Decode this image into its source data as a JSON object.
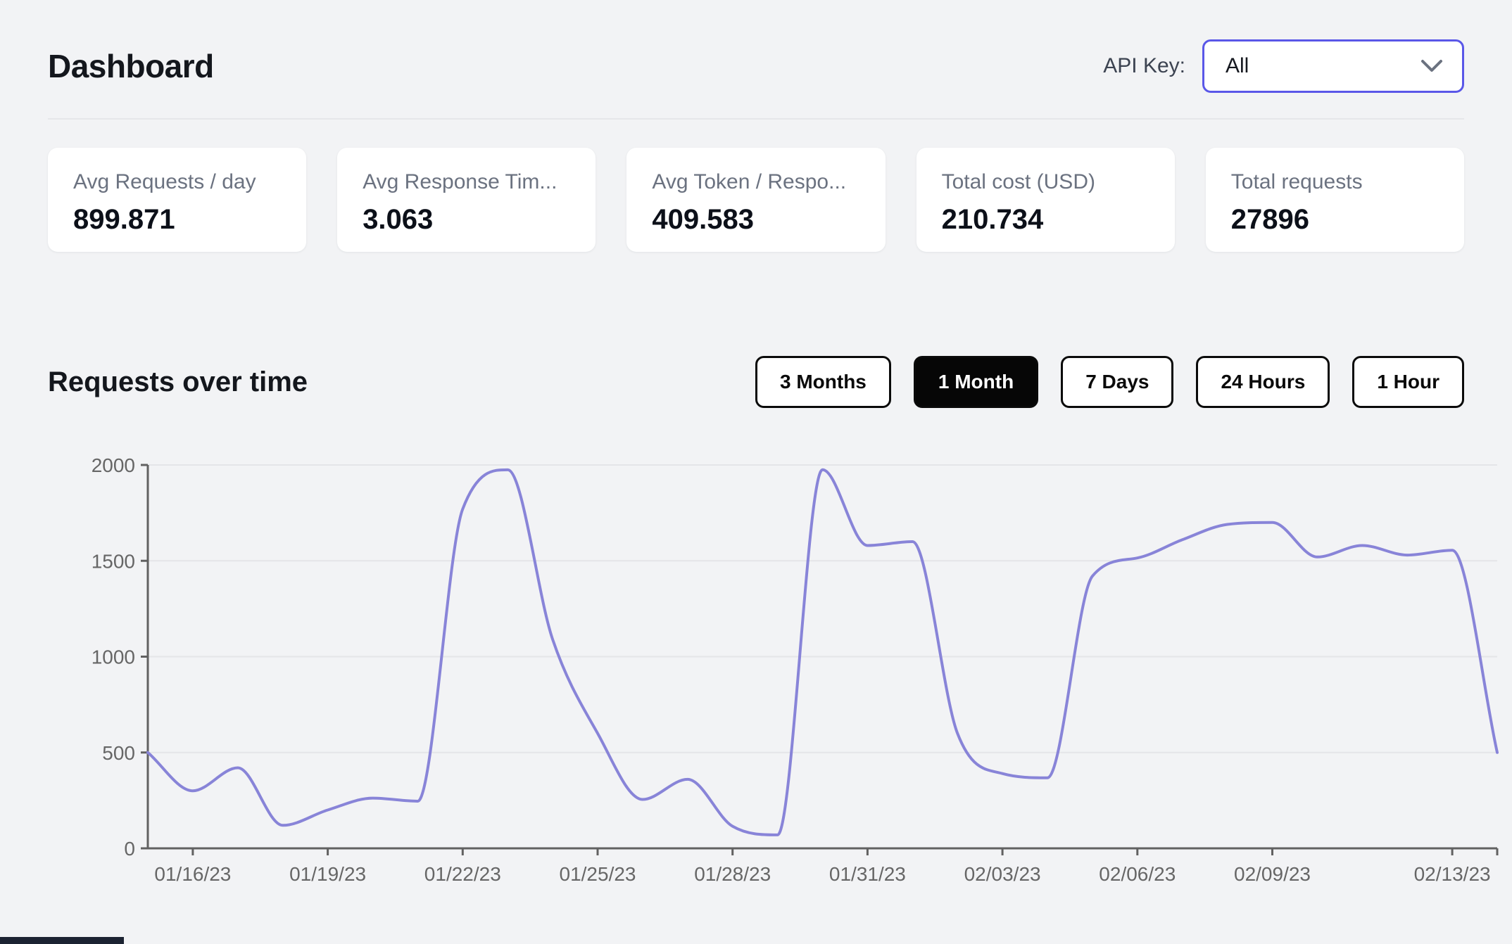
{
  "header": {
    "title": "Dashboard",
    "api_key_label": "API Key:",
    "api_key_value": "All"
  },
  "stats": {
    "cards": [
      {
        "label": "Avg Requests / day",
        "value": "899.871"
      },
      {
        "label": "Avg Response Tim...",
        "value": "3.063"
      },
      {
        "label": "Avg Token / Respo...",
        "value": "409.583"
      },
      {
        "label": "Total cost (USD)",
        "value": "210.734"
      },
      {
        "label": "Total requests",
        "value": "27896"
      }
    ]
  },
  "section": {
    "title": "Requests over time"
  },
  "time_ranges": {
    "options": [
      "3 Months",
      "1 Month",
      "7 Days",
      "24 Hours",
      "1 Hour"
    ],
    "active": "1 Month"
  },
  "chart_data": {
    "type": "line",
    "title": "Requests over time",
    "x": [
      "01/15/23",
      "01/16/23",
      "01/17/23",
      "01/18/23",
      "01/19/23",
      "01/20/23",
      "01/21/23",
      "01/22/23",
      "01/23/23",
      "01/24/23",
      "01/25/23",
      "01/26/23",
      "01/27/23",
      "01/28/23",
      "01/29/23",
      "01/30/23",
      "01/31/23",
      "02/01/23",
      "02/02/23",
      "02/03/23",
      "02/04/23",
      "02/05/23",
      "02/06/23",
      "02/07/23",
      "02/08/23",
      "02/09/23",
      "02/10/23",
      "02/11/23",
      "02/12/23",
      "02/13/23",
      "02/14/23"
    ],
    "series": [
      {
        "name": "requests",
        "values": [
          500,
          300,
          420,
          120,
          200,
          262,
          246,
          1770,
          1975,
          1090,
          600,
          255,
          360,
          115,
          70,
          1975,
          1580,
          1600,
          600,
          390,
          368,
          1420,
          1515,
          1610,
          1690,
          1700,
          1520,
          1580,
          1530,
          1555,
          500
        ]
      }
    ],
    "x_tick_labels": [
      "01/16/23",
      "01/19/23",
      "01/22/23",
      "01/25/23",
      "01/28/23",
      "01/31/23",
      "02/03/23",
      "02/06/23",
      "02/09/23",
      "02/13/23"
    ],
    "x_tick_indices": [
      1,
      4,
      7,
      10,
      13,
      16,
      19,
      22,
      25,
      29
    ],
    "y_ticks": [
      0,
      500,
      1000,
      1500,
      2000
    ],
    "ylim": [
      0,
      2000
    ],
    "grid": "horizontal",
    "legend": false,
    "line_color": "#8884d8",
    "axis_color": "#616161",
    "tick_text_color": "#666666",
    "grid_color": "#e4e5e8"
  },
  "colors": {
    "page_bg": "#f2f3f5",
    "card_bg": "#ffffff",
    "accent": "#5a57e8",
    "button_active_bg": "#060606"
  }
}
